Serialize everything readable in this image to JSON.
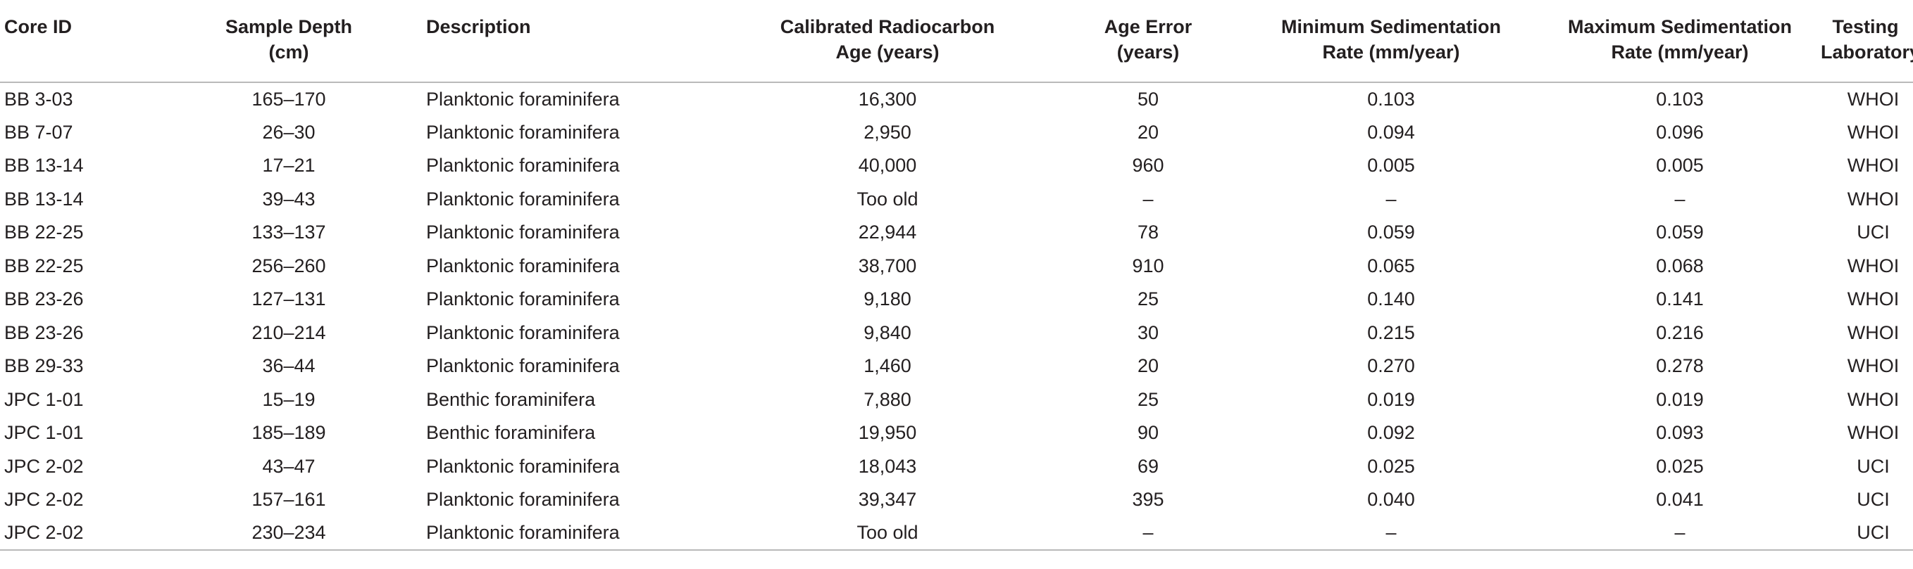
{
  "table": {
    "headers": [
      {
        "line1": "Core ID",
        "line2": ""
      },
      {
        "line1": "Sample Depth",
        "line2": "(cm)"
      },
      {
        "line1": "Description",
        "line2": ""
      },
      {
        "line1": "Calibrated Radiocarbon",
        "line2": "Age (years)"
      },
      {
        "line1": "Age Error",
        "line2": "(years)"
      },
      {
        "line1": "Minimum Sedimentation",
        "line2": "Rate (mm/year)"
      },
      {
        "line1": "Maximum Sedimentation",
        "line2": "Rate (mm/year)"
      },
      {
        "line1": "Testing",
        "line2": "Laboratory"
      }
    ],
    "rows": [
      [
        "BB 3-03",
        "165–170",
        "Planktonic foraminifera",
        "16,300",
        "50",
        "0.103",
        "0.103",
        "WHOI"
      ],
      [
        "BB 7-07",
        "26–30",
        "Planktonic foraminifera",
        "2,950",
        "20",
        "0.094",
        "0.096",
        "WHOI"
      ],
      [
        "BB 13-14",
        "17–21",
        "Planktonic foraminifera",
        "40,000",
        "960",
        "0.005",
        "0.005",
        "WHOI"
      ],
      [
        "BB 13-14",
        "39–43",
        "Planktonic foraminifera",
        "Too old",
        "–",
        "–",
        "–",
        "WHOI"
      ],
      [
        "BB 22-25",
        "133–137",
        "Planktonic foraminifera",
        "22,944",
        "78",
        "0.059",
        "0.059",
        "UCI"
      ],
      [
        "BB 22-25",
        "256–260",
        "Planktonic foraminifera",
        "38,700",
        "910",
        "0.065",
        "0.068",
        "WHOI"
      ],
      [
        "BB 23-26",
        "127–131",
        "Planktonic foraminifera",
        "9,180",
        "25",
        "0.140",
        "0.141",
        "WHOI"
      ],
      [
        "BB 23-26",
        "210–214",
        "Planktonic foraminifera",
        "9,840",
        "30",
        "0.215",
        "0.216",
        "WHOI"
      ],
      [
        "BB 29-33",
        "36–44",
        "Planktonic foraminifera",
        "1,460",
        "20",
        "0.270",
        "0.278",
        "WHOI"
      ],
      [
        "JPC 1-01",
        "15–19",
        "Benthic foraminifera",
        "7,880",
        "25",
        "0.019",
        "0.019",
        "WHOI"
      ],
      [
        "JPC 1-01",
        "185–189",
        "Benthic foraminifera",
        "19,950",
        "90",
        "0.092",
        "0.093",
        "WHOI"
      ],
      [
        "JPC 2-02",
        "43–47",
        "Planktonic foraminifera",
        "18,043",
        "69",
        "0.025",
        "0.025",
        "UCI"
      ],
      [
        "JPC 2-02",
        "157–161",
        "Planktonic foraminifera",
        "39,347",
        "395",
        "0.040",
        "0.041",
        "UCI"
      ],
      [
        "JPC 2-02",
        "230–234",
        "Planktonic foraminifera",
        "Too old",
        "–",
        "–",
        "–",
        "UCI"
      ]
    ]
  }
}
